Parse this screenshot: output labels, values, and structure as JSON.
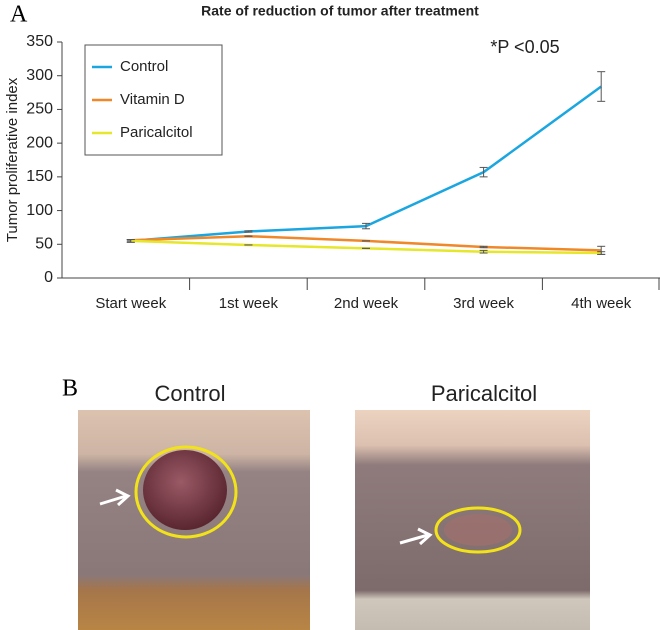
{
  "panels": [
    {
      "label": "A"
    },
    {
      "label": "B",
      "captions": [
        "Control",
        "Paricalcitol"
      ]
    }
  ],
  "chart_data": {
    "type": "line",
    "title": "Rate of reduction of tumor after treatment",
    "annotation": "*P <0.05",
    "y_label": "Tumor proliferative index",
    "categories": [
      "Start week",
      "1st week",
      "2nd week",
      "3rd week",
      "4th week"
    ],
    "series": [
      {
        "name": "Control",
        "color": "#1ba6e0",
        "values": [
          55,
          69,
          77,
          157,
          284
        ],
        "errors": [
          2,
          1,
          4,
          7,
          22
        ]
      },
      {
        "name": "Vitamin D",
        "color": "#f0882a",
        "values": [
          56,
          62,
          55,
          46,
          41
        ],
        "errors": [
          1,
          0,
          0,
          1,
          6
        ]
      },
      {
        "name": "Paricalcitol",
        "color": "#e6e62a",
        "values": [
          55,
          49,
          44,
          39,
          37
        ],
        "errors": [
          2,
          0,
          0,
          2,
          2
        ]
      }
    ],
    "ylim": [
      0,
      350
    ],
    "yticks": [
      0,
      50,
      100,
      150,
      200,
      250,
      300,
      350
    ],
    "legend": "top-left"
  }
}
